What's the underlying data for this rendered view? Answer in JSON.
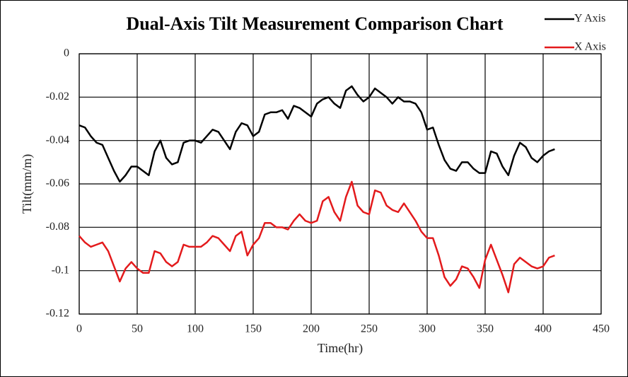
{
  "chart_data": {
    "type": "line",
    "title": "Dual-Axis Tilt Measurement Comparison Chart",
    "x_label": "Time(hr)",
    "y_label": "Tilt(mm/m)",
    "x": [
      0,
      5,
      10,
      15,
      20,
      25,
      30,
      35,
      40,
      45,
      50,
      55,
      60,
      65,
      70,
      75,
      80,
      85,
      90,
      95,
      100,
      105,
      110,
      115,
      120,
      125,
      130,
      135,
      140,
      145,
      150,
      155,
      160,
      165,
      170,
      175,
      180,
      185,
      190,
      195,
      200,
      205,
      210,
      215,
      220,
      225,
      230,
      235,
      240,
      245,
      250,
      255,
      260,
      265,
      270,
      275,
      280,
      285,
      290,
      295,
      300,
      305,
      310,
      315,
      320,
      325,
      330,
      335,
      340,
      345,
      350,
      355,
      360,
      365,
      370,
      375,
      380,
      385,
      390,
      395,
      400,
      405,
      410
    ],
    "series": [
      {
        "name": "Y Axis",
        "color": "#000000",
        "values": [
          -0.033,
          -0.034,
          -0.038,
          -0.041,
          -0.042,
          -0.048,
          -0.054,
          -0.059,
          -0.056,
          -0.052,
          -0.052,
          -0.054,
          -0.056,
          -0.045,
          -0.04,
          -0.048,
          -0.051,
          -0.05,
          -0.041,
          -0.04,
          -0.04,
          -0.041,
          -0.038,
          -0.035,
          -0.036,
          -0.04,
          -0.044,
          -0.036,
          -0.032,
          -0.033,
          -0.038,
          -0.036,
          -0.028,
          -0.027,
          -0.027,
          -0.026,
          -0.03,
          -0.024,
          -0.025,
          -0.027,
          -0.029,
          -0.023,
          -0.021,
          -0.02,
          -0.023,
          -0.025,
          -0.017,
          -0.015,
          -0.019,
          -0.022,
          -0.02,
          -0.016,
          -0.018,
          -0.02,
          -0.023,
          -0.02,
          -0.022,
          -0.022,
          -0.023,
          -0.027,
          -0.035,
          -0.034,
          -0.042,
          -0.049,
          -0.053,
          -0.054,
          -0.05,
          -0.05,
          -0.053,
          -0.055,
          -0.055,
          -0.045,
          -0.046,
          -0.052,
          -0.056,
          -0.047,
          -0.041,
          -0.043,
          -0.048,
          -0.05,
          -0.047,
          -0.045,
          -0.044
        ]
      },
      {
        "name": "X Axis",
        "color": "#e31a1c",
        "values": [
          -0.084,
          -0.087,
          -0.089,
          -0.088,
          -0.087,
          -0.091,
          -0.098,
          -0.105,
          -0.099,
          -0.096,
          -0.099,
          -0.101,
          -0.101,
          -0.091,
          -0.092,
          -0.096,
          -0.098,
          -0.096,
          -0.088,
          -0.089,
          -0.089,
          -0.089,
          -0.087,
          -0.084,
          -0.085,
          -0.088,
          -0.091,
          -0.084,
          -0.082,
          -0.093,
          -0.088,
          -0.085,
          -0.078,
          -0.078,
          -0.08,
          -0.08,
          -0.081,
          -0.077,
          -0.074,
          -0.077,
          -0.078,
          -0.077,
          -0.068,
          -0.066,
          -0.073,
          -0.077,
          -0.066,
          -0.059,
          -0.07,
          -0.073,
          -0.074,
          -0.063,
          -0.064,
          -0.07,
          -0.072,
          -0.073,
          -0.069,
          -0.073,
          -0.077,
          -0.082,
          -0.085,
          -0.085,
          -0.093,
          -0.103,
          -0.107,
          -0.104,
          -0.098,
          -0.099,
          -0.103,
          -0.108,
          -0.095,
          -0.088,
          -0.095,
          -0.102,
          -0.11,
          -0.097,
          -0.094,
          -0.096,
          -0.098,
          -0.099,
          -0.098,
          -0.094,
          -0.093
        ]
      }
    ],
    "xlim": [
      0,
      450
    ],
    "xticks": [
      0,
      50,
      100,
      150,
      200,
      250,
      300,
      350,
      400,
      450
    ],
    "ylim": [
      -0.12,
      0
    ],
    "yticks": [
      0,
      -0.02,
      -0.04,
      -0.06,
      -0.08,
      -0.1,
      -0.12
    ],
    "grid": true,
    "legend": "top-right"
  }
}
